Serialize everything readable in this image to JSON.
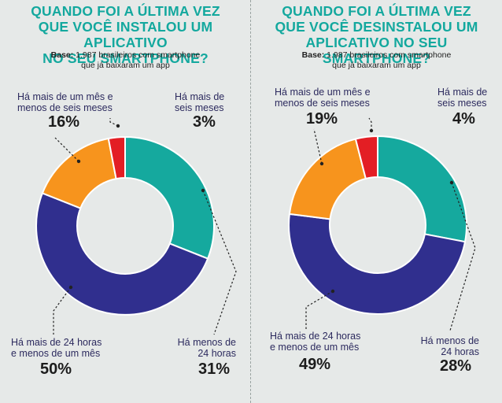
{
  "colors": {
    "title": "#13a89e",
    "teal": "#15a99e",
    "navy": "#302f8e",
    "orange": "#f7941d",
    "red": "#e31e24"
  },
  "chart_data": [
    {
      "type": "pie",
      "donut": true,
      "title": [
        "QUANDO FOI A ÚLTIMA VEZ",
        "QUE VOCÊ INSTALOU UM APLICATIVO",
        "NO SEU SMARTPHONE?"
      ],
      "base_label": "Base:",
      "base_text": [
        "1.987 brasileiros com smartphone",
        "que já baixaram um app"
      ],
      "slices": [
        {
          "label": [
            "Há menos de",
            "24 horas"
          ],
          "value": 31,
          "value_label": "31%",
          "color": "#15a99e"
        },
        {
          "label": [
            "Há mais de 24 horas",
            "e menos de um mês"
          ],
          "value": 50,
          "value_label": "50%",
          "color": "#302f8e"
        },
        {
          "label": [
            "Há mais de um mês e",
            "menos de seis meses"
          ],
          "value": 16,
          "value_label": "16%",
          "color": "#f7941d"
        },
        {
          "label": [
            "Há mais de",
            "seis meses"
          ],
          "value": 3,
          "value_label": "3%",
          "color": "#e31e24"
        }
      ]
    },
    {
      "type": "pie",
      "donut": true,
      "title": [
        "QUANDO FOI A ÚLTIMA VEZ",
        "QUE VOCÊ DESINSTALOU UM",
        "APLICATIVO NO SEU SMARTPHONE?"
      ],
      "base_label": "Base:",
      "base_text": [
        "1.987 brasileiros com smartphone",
        "que já baixaram um app"
      ],
      "slices": [
        {
          "label": [
            "Há menos de",
            "24 horas"
          ],
          "value": 28,
          "value_label": "28%",
          "color": "#15a99e"
        },
        {
          "label": [
            "Há mais de 24 horas",
            "e menos de um mês"
          ],
          "value": 49,
          "value_label": "49%",
          "color": "#302f8e"
        },
        {
          "label": [
            "Há mais de um mês e",
            "menos de seis meses"
          ],
          "value": 19,
          "value_label": "19%",
          "color": "#f7941d"
        },
        {
          "label": [
            "Há mais de",
            "seis meses"
          ],
          "value": 4,
          "value_label": "4%",
          "color": "#e31e24"
        }
      ]
    }
  ]
}
